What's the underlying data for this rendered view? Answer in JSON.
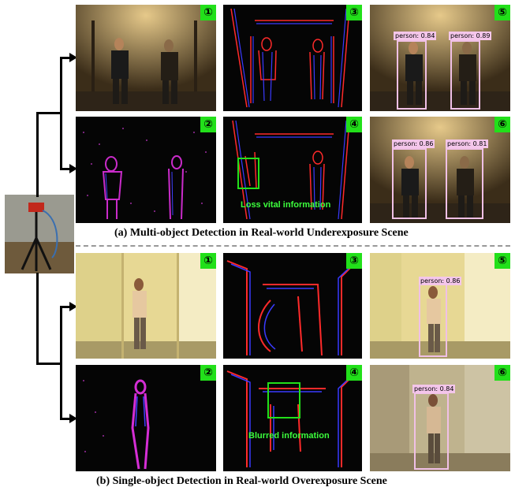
{
  "badges": {
    "b1": "①",
    "b2": "②",
    "b3": "③",
    "b4": "④",
    "b5": "⑤",
    "b6": "⑥"
  },
  "top": {
    "caption": "(a) Multi-object Detection in Real-world Underexposure Scene",
    "det5": [
      "person: 0.84",
      "person: 0.89"
    ],
    "det6": [
      "person: 0.86",
      "person: 0.81"
    ],
    "annotation": "Loss vital information"
  },
  "bottom": {
    "caption": "(b) Single-object Detection in Real-world Overexposure Scene",
    "det5": [
      "person: 0.86"
    ],
    "det6": [
      "person: 0.84"
    ],
    "annotation": "Blurred information"
  },
  "colors": {
    "badge": "#22e01a",
    "label_bg": "#f4c6ea",
    "event_red": "#ff2a2a",
    "event_blue": "#3a3aff",
    "dashed": "#999999"
  }
}
